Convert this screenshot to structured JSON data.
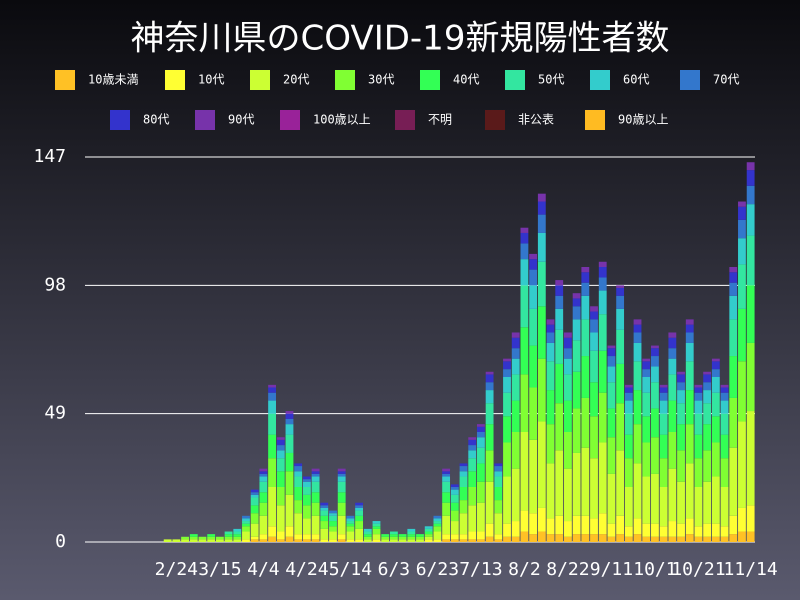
{
  "chart_data": {
    "type": "stacked_bar",
    "title": "神奈川県のCOVID-19新規陽性者数",
    "categories": [
      null,
      null,
      null,
      null,
      null,
      null,
      null,
      null,
      null,
      null,
      "2/24",
      null,
      null,
      null,
      null,
      "3/15",
      null,
      null,
      null,
      null,
      "4/4",
      null,
      null,
      null,
      null,
      "4/24",
      null,
      null,
      null,
      null,
      "5/14",
      null,
      null,
      null,
      null,
      "6/3",
      null,
      null,
      null,
      null,
      "6/23",
      null,
      null,
      null,
      null,
      "7/13",
      null,
      null,
      null,
      null,
      "8/2",
      null,
      null,
      null,
      null,
      "8/22",
      null,
      null,
      null,
      null,
      "9/11",
      null,
      null,
      null,
      null,
      "10/1",
      null,
      null,
      null,
      null,
      "10/21",
      null,
      null,
      null,
      null,
      null,
      "11/14"
    ],
    "ylim": [
      0,
      147
    ],
    "yticks": [
      0,
      49,
      98,
      147
    ],
    "grid": true,
    "series": [
      {
        "name": "10歳未満",
        "color": "#ffc125",
        "values": [
          0,
          0,
          0,
          0,
          0,
          0,
          0,
          0,
          0,
          0,
          0,
          0,
          0,
          0,
          0,
          0,
          0,
          0,
          0,
          1,
          1,
          2,
          1,
          2,
          1,
          1,
          1,
          0,
          0,
          1,
          0,
          0,
          0,
          0,
          0,
          0,
          0,
          0,
          0,
          0,
          0,
          1,
          1,
          1,
          1,
          1,
          2,
          1,
          2,
          2,
          4,
          3,
          4,
          3,
          3,
          2,
          3,
          3,
          3,
          3,
          2,
          3,
          2,
          3,
          2,
          2,
          2,
          2,
          2,
          3,
          2,
          2,
          2,
          2,
          3,
          4,
          4
        ]
      },
      {
        "name": "10代",
        "color": "#ffff33",
        "values": [
          0,
          0,
          0,
          0,
          0,
          0,
          0,
          0,
          0,
          0,
          0,
          0,
          0,
          0,
          0,
          0,
          0,
          0,
          1,
          1,
          2,
          4,
          3,
          4,
          2,
          2,
          2,
          1,
          1,
          2,
          1,
          1,
          0,
          1,
          0,
          0,
          0,
          0,
          0,
          1,
          1,
          2,
          2,
          2,
          3,
          3,
          5,
          2,
          5,
          6,
          8,
          8,
          9,
          6,
          7,
          6,
          7,
          7,
          6,
          8,
          5,
          7,
          4,
          6,
          5,
          5,
          4,
          6,
          5,
          6,
          4,
          5,
          5,
          4,
          7,
          9,
          10
        ]
      },
      {
        "name": "20代",
        "color": "#ccff33",
        "values": [
          0,
          0,
          0,
          0,
          0,
          0,
          0,
          0,
          0,
          1,
          1,
          1,
          1,
          1,
          1,
          1,
          1,
          1,
          3,
          5,
          7,
          15,
          10,
          12,
          8,
          6,
          7,
          4,
          3,
          7,
          3,
          4,
          1,
          2,
          1,
          1,
          1,
          1,
          1,
          1,
          3,
          7,
          5,
          8,
          10,
          11,
          16,
          8,
          18,
          20,
          30,
          28,
          33,
          21,
          25,
          20,
          24,
          26,
          23,
          27,
          19,
          25,
          15,
          21,
          18,
          19,
          15,
          20,
          16,
          21,
          15,
          16,
          18,
          15,
          26,
          33,
          36
        ]
      },
      {
        "name": "30代",
        "color": "#80ff33",
        "values": [
          0,
          0,
          0,
          0,
          0,
          0,
          0,
          0,
          0,
          0,
          0,
          1,
          1,
          1,
          1,
          1,
          1,
          1,
          2,
          4,
          5,
          11,
          7,
          9,
          5,
          5,
          5,
          3,
          2,
          5,
          2,
          3,
          1,
          2,
          1,
          1,
          1,
          1,
          1,
          1,
          2,
          5,
          4,
          5,
          7,
          8,
          12,
          5,
          13,
          14,
          22,
          20,
          24,
          15,
          18,
          14,
          17,
          19,
          16,
          19,
          14,
          18,
          11,
          15,
          13,
          14,
          11,
          14,
          12,
          15,
          11,
          12,
          13,
          11,
          19,
          23,
          26
        ]
      },
      {
        "name": "40代",
        "color": "#33ff55",
        "values": [
          0,
          0,
          0,
          0,
          0,
          0,
          0,
          0,
          0,
          0,
          0,
          0,
          1,
          0,
          1,
          0,
          1,
          1,
          1,
          3,
          4,
          9,
          6,
          7,
          5,
          4,
          4,
          2,
          2,
          4,
          1,
          2,
          1,
          1,
          1,
          1,
          1,
          1,
          1,
          1,
          1,
          4,
          3,
          5,
          6,
          7,
          10,
          5,
          10,
          12,
          18,
          16,
          20,
          13,
          15,
          12,
          14,
          16,
          13,
          16,
          11,
          15,
          9,
          13,
          10,
          11,
          9,
          12,
          10,
          13,
          9,
          10,
          10,
          9,
          16,
          20,
          22
        ]
      },
      {
        "name": "50代",
        "color": "#33e6a0",
        "values": [
          0,
          0,
          0,
          0,
          0,
          0,
          0,
          0,
          0,
          0,
          0,
          0,
          0,
          0,
          0,
          0,
          1,
          1,
          1,
          3,
          4,
          8,
          5,
          7,
          4,
          3,
          4,
          2,
          2,
          4,
          1,
          2,
          1,
          1,
          0,
          1,
          0,
          1,
          0,
          1,
          1,
          4,
          3,
          4,
          5,
          6,
          8,
          4,
          9,
          10,
          16,
          14,
          17,
          11,
          13,
          10,
          12,
          14,
          12,
          14,
          10,
          13,
          8,
          11,
          9,
          10,
          8,
          10,
          8,
          11,
          8,
          8,
          9,
          8,
          14,
          17,
          19
        ]
      },
      {
        "name": "60代",
        "color": "#33cccc",
        "values": [
          0,
          0,
          0,
          0,
          0,
          0,
          0,
          0,
          0,
          0,
          0,
          0,
          0,
          0,
          0,
          0,
          0,
          1,
          1,
          1,
          2,
          5,
          3,
          4,
          2,
          2,
          2,
          1,
          1,
          2,
          1,
          1,
          1,
          1,
          0,
          0,
          0,
          1,
          0,
          1,
          1,
          2,
          2,
          2,
          3,
          4,
          5,
          2,
          6,
          6,
          10,
          9,
          11,
          7,
          8,
          6,
          8,
          9,
          7,
          9,
          6,
          8,
          5,
          7,
          6,
          6,
          5,
          6,
          5,
          7,
          5,
          5,
          6,
          5,
          9,
          10,
          12
        ]
      },
      {
        "name": "70代",
        "color": "#3377cc",
        "values": [
          0,
          0,
          0,
          0,
          0,
          0,
          0,
          0,
          0,
          0,
          0,
          0,
          0,
          0,
          0,
          0,
          0,
          0,
          1,
          1,
          1,
          3,
          2,
          2,
          2,
          1,
          1,
          1,
          1,
          1,
          1,
          1,
          0,
          0,
          0,
          0,
          0,
          0,
          0,
          0,
          1,
          1,
          1,
          2,
          2,
          2,
          3,
          2,
          3,
          4,
          6,
          6,
          7,
          4,
          5,
          4,
          5,
          5,
          5,
          5,
          4,
          5,
          3,
          4,
          3,
          4,
          3,
          4,
          3,
          4,
          3,
          3,
          3,
          3,
          5,
          7,
          7
        ]
      },
      {
        "name": "80代",
        "color": "#3333cc",
        "values": [
          0,
          0,
          0,
          0,
          0,
          0,
          0,
          0,
          0,
          0,
          0,
          0,
          0,
          0,
          0,
          0,
          0,
          0,
          0,
          1,
          1,
          2,
          2,
          2,
          1,
          1,
          1,
          1,
          0,
          1,
          0,
          1,
          0,
          0,
          0,
          0,
          0,
          0,
          0,
          0,
          0,
          1,
          1,
          1,
          2,
          2,
          3,
          1,
          3,
          4,
          4,
          4,
          5,
          3,
          4,
          4,
          3,
          4,
          3,
          4,
          3,
          3,
          2,
          3,
          3,
          3,
          2,
          4,
          3,
          3,
          2,
          3,
          3,
          2,
          4,
          5,
          6
        ]
      },
      {
        "name": "90代",
        "color": "#7733aa",
        "values": [
          0,
          0,
          0,
          0,
          0,
          0,
          0,
          0,
          0,
          0,
          0,
          0,
          0,
          0,
          0,
          0,
          0,
          0,
          0,
          0,
          1,
          1,
          1,
          1,
          0,
          0,
          1,
          0,
          0,
          1,
          0,
          0,
          0,
          0,
          0,
          0,
          0,
          0,
          0,
          0,
          0,
          1,
          0,
          0,
          1,
          1,
          1,
          0,
          1,
          2,
          2,
          2,
          3,
          2,
          2,
          2,
          2,
          2,
          2,
          2,
          1,
          1,
          1,
          2,
          1,
          1,
          1,
          2,
          1,
          2,
          1,
          1,
          1,
          1,
          2,
          2,
          3
        ]
      },
      {
        "name": "100歳以上",
        "color": "#992299",
        "values": [
          0,
          0,
          0,
          0,
          0,
          0,
          0,
          0,
          0,
          0,
          0,
          0,
          0,
          0,
          0,
          0,
          0,
          0,
          0,
          0,
          0,
          0,
          0,
          0,
          0,
          0,
          0,
          0,
          0,
          0,
          0,
          0,
          0,
          0,
          0,
          0,
          0,
          0,
          0,
          0,
          0,
          0,
          0,
          0,
          0,
          0,
          0,
          0,
          0,
          0,
          0,
          0,
          0,
          0,
          0,
          0,
          0,
          0,
          0,
          0,
          0,
          0,
          0,
          0,
          0,
          0,
          0,
          0,
          0,
          0,
          0,
          0,
          0,
          0,
          0,
          0,
          0
        ]
      },
      {
        "name": "不明",
        "color": "#771e55",
        "values": [
          0,
          0,
          0,
          0,
          0,
          0,
          0,
          0,
          0,
          0,
          0,
          0,
          0,
          0,
          0,
          0,
          0,
          0,
          0,
          0,
          0,
          0,
          0,
          0,
          0,
          0,
          0,
          0,
          0,
          0,
          0,
          0,
          0,
          0,
          0,
          0,
          0,
          0,
          0,
          0,
          0,
          0,
          0,
          0,
          0,
          0,
          0,
          0,
          0,
          0,
          0,
          0,
          0,
          0,
          0,
          0,
          0,
          0,
          0,
          0,
          0,
          0,
          0,
          0,
          0,
          0,
          0,
          0,
          0,
          0,
          0,
          0,
          0,
          0,
          0,
          0,
          0
        ]
      },
      {
        "name": "非公表",
        "color": "#5a1a1a",
        "values": [
          0,
          0,
          0,
          0,
          0,
          0,
          0,
          0,
          0,
          0,
          0,
          0,
          0,
          0,
          0,
          0,
          0,
          0,
          0,
          0,
          0,
          0,
          0,
          0,
          0,
          0,
          0,
          0,
          0,
          0,
          0,
          0,
          0,
          0,
          0,
          0,
          0,
          0,
          0,
          0,
          0,
          0,
          0,
          0,
          0,
          0,
          0,
          0,
          0,
          0,
          0,
          0,
          0,
          0,
          0,
          0,
          0,
          0,
          0,
          0,
          0,
          0,
          0,
          0,
          0,
          0,
          0,
          0,
          0,
          0,
          0,
          0,
          0,
          0,
          0,
          0,
          0
        ]
      },
      {
        "name": "90歳以上",
        "color": "#ffbb22",
        "values": [
          0,
          0,
          0,
          0,
          0,
          0,
          0,
          0,
          0,
          0,
          0,
          0,
          0,
          0,
          0,
          0,
          0,
          0,
          0,
          0,
          0,
          0,
          0,
          0,
          0,
          0,
          0,
          0,
          0,
          0,
          0,
          0,
          0,
          0,
          0,
          0,
          0,
          0,
          0,
          0,
          0,
          0,
          0,
          0,
          0,
          0,
          0,
          0,
          0,
          0,
          0,
          0,
          0,
          0,
          0,
          0,
          0,
          0,
          0,
          0,
          0,
          0,
          0,
          0,
          0,
          0,
          0,
          0,
          0,
          0,
          0,
          0,
          0,
          0,
          0,
          0,
          0
        ]
      }
    ]
  }
}
